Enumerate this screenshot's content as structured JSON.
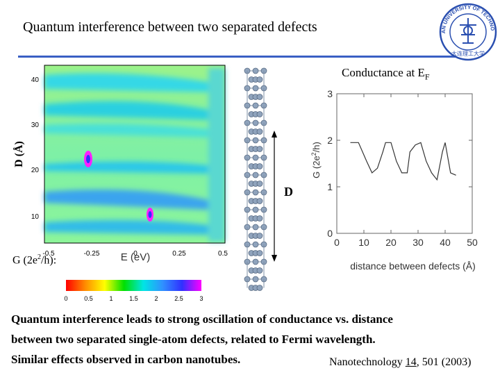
{
  "title": "Quantum interference between two separated defects",
  "logo": {
    "ring_text": "DALIAN UNIVERSITY OF TECHNOLOGY",
    "bottom_text": "大连理工大学",
    "color": "#2a4fb0"
  },
  "heatmap": {
    "y_label": "D (Å)",
    "x_label": "E (eV)",
    "x_ticks": [
      "-0.5",
      "-0.25",
      "0",
      "0.25",
      "0.5"
    ],
    "y_ticks": [
      "10",
      "20",
      "30",
      "40"
    ],
    "colorbar_label_prefix": "G (2e",
    "colorbar_label_sup": "2",
    "colorbar_label_suffix": "/h):",
    "colorbar_ticks": [
      "0",
      "0.5",
      "1",
      "1.5",
      "2",
      "2.5",
      "3"
    ],
    "colorbar_colors": [
      "#ff0000",
      "#ff8c00",
      "#ffff00",
      "#00e000",
      "#00e5e5",
      "#3090ff",
      "#3030ff",
      "#ff00ff"
    ]
  },
  "structure": {
    "distance_label": "D"
  },
  "chart_data": {
    "type": "line",
    "title": "Conductance at E",
    "title_sub": "F",
    "xlabel": "distance between defects (Å)",
    "ylabel_prefix": "G (2e",
    "ylabel_sup": "2",
    "ylabel_suffix": "/h)",
    "xlim": [
      0,
      50
    ],
    "ylim": [
      0,
      3
    ],
    "x_ticks": [
      0,
      10,
      20,
      30,
      40,
      50
    ],
    "y_ticks": [
      0,
      1,
      2,
      3
    ],
    "x": [
      5,
      8,
      11,
      13,
      15,
      17,
      18,
      20,
      22,
      24,
      26,
      27,
      29,
      31,
      33,
      35,
      37,
      39,
      40,
      42,
      44
    ],
    "values": [
      1.95,
      1.95,
      1.55,
      1.3,
      1.4,
      1.75,
      1.95,
      1.95,
      1.55,
      1.3,
      1.3,
      1.75,
      1.9,
      1.95,
      1.55,
      1.3,
      1.15,
      1.75,
      1.95,
      1.3,
      1.25
    ]
  },
  "body_text": [
    "Quantum interference leads to strong oscillation of conductance vs. distance",
    "between two separated single-atom defects, related to Fermi wavelength.",
    "Similar effects observed in carbon nanotubes."
  ],
  "citation": {
    "journal": "Nanotechnology",
    "volume": "14",
    "rest": ", 501 (2003)"
  }
}
